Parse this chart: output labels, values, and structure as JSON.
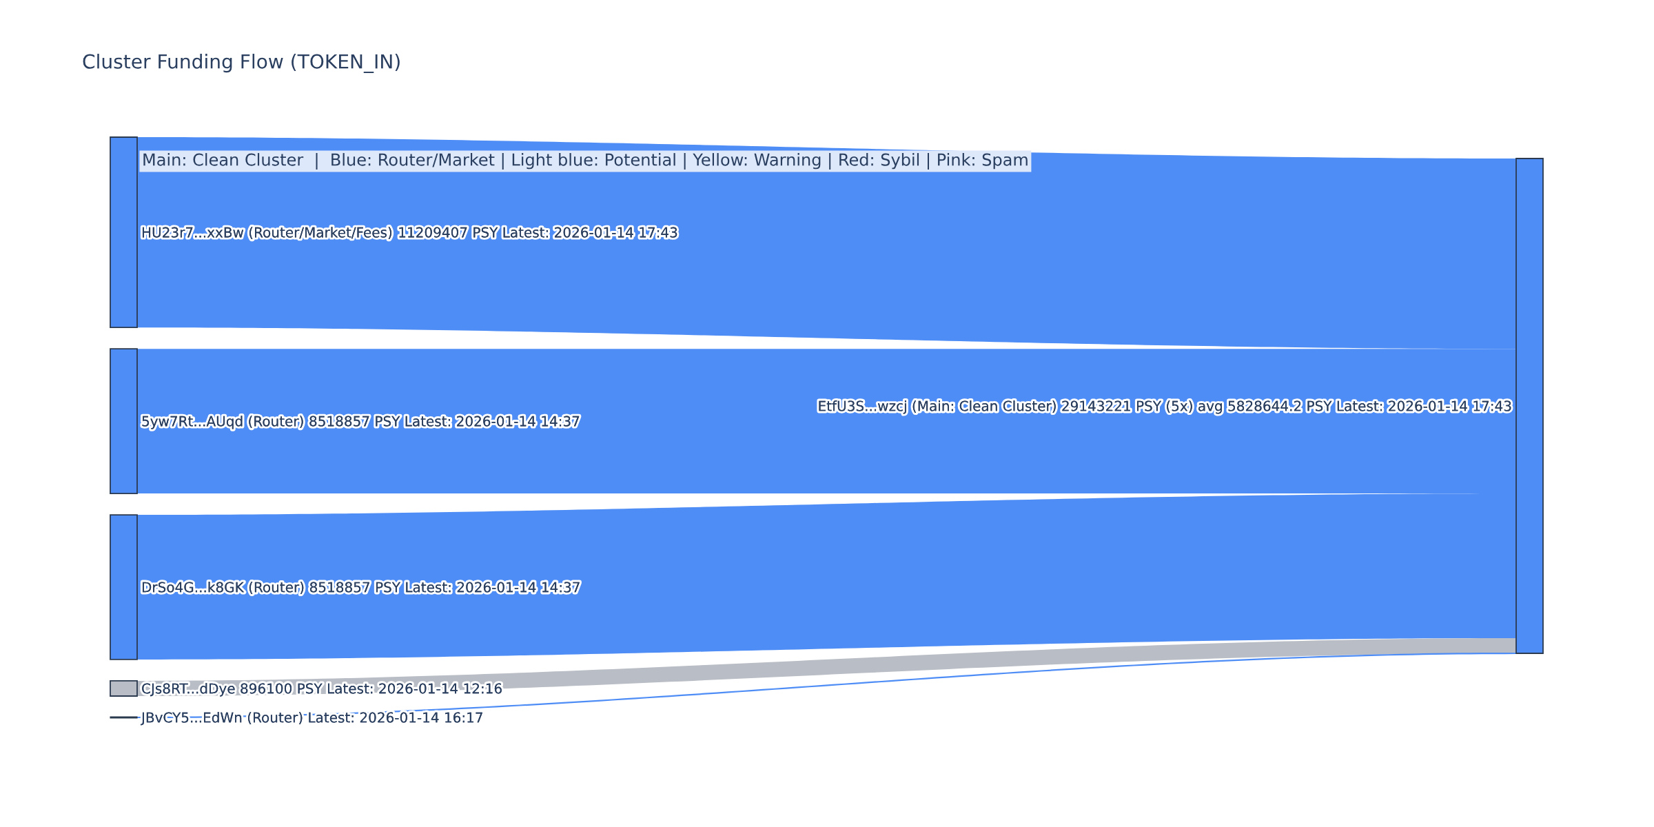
{
  "chart_data": {
    "type": "other",
    "title": "Cluster Funding Flow (TOKEN_IN)",
    "annotations": [
      "Main: Clean Cluster  |  Blue: Router/Market | Light blue: Potential | Yellow: Warning | Red: Sybil | Pink: Spam"
    ],
    "categories": [
      "HU23r7...xxBw (Router/Market/Fees)",
      "5yw7Rt...AUqd (Router)",
      "DrSo4G...k8GK (Router)",
      "CJs8RT...dDye",
      "JBvCY5...EdWn (Router) Latest: 2026-01-14 16:17"
    ],
    "series": [
      {
        "name": "EtfU3S...wzcj (Main: Clean Cluster) 29143221 PSY (5x) avg 5828644.2 PSY Latest: 2026-01-14 17:43",
        "color": "#4f8df6",
        "colors": [
          "#4f8df6",
          "#4f8df6",
          "#4f8df6",
          "#b9bdc5",
          "#4f8df6"
        ],
        "values": [
          11209407,
          8518857,
          8518857,
          896100,
          null
        ],
        "value_labels": [
          "11209407 PSY Latest: 2026-01-14 17:43",
          "8518857 PSY Latest: 2026-01-14 14:37",
          "8518857 PSY Latest: 2026-01-14 14:37",
          "896100 PSY Latest: 2026-01-14 12:16",
          null
        ]
      }
    ]
  }
}
